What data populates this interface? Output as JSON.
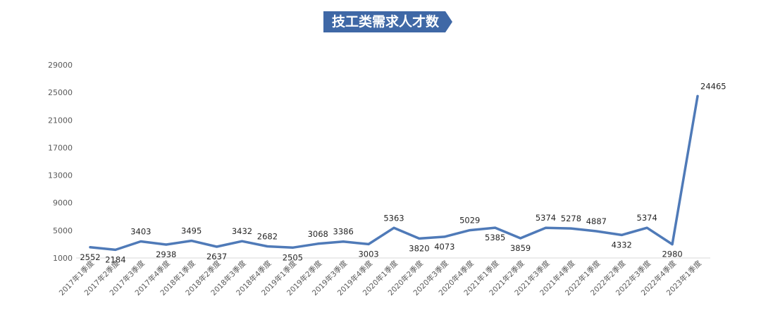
{
  "colors": {
    "title_bg": "#3f68a6",
    "title_text": "#ffffff",
    "line": "#4f7ab8",
    "axis_text": "#595959",
    "label_text": "#262626",
    "axis_line": "#d9d9d9"
  },
  "chart_data": {
    "type": "line",
    "title": "技工类需求人才数",
    "xlabel": "",
    "ylabel": "",
    "ylim": [
      1000,
      29000
    ],
    "yticks": [
      1000,
      5000,
      9000,
      13000,
      17000,
      21000,
      25000,
      29000
    ],
    "grid": false,
    "categories": [
      "2017年1季度",
      "2017年2季度",
      "2017年3季度",
      "2017年4季度",
      "2018年1季度",
      "2018年2季度",
      "2018年3季度",
      "2018年4季度",
      "2019年1季度",
      "2019年2季度",
      "2019年3季度",
      "2019年4季度",
      "2020年1季度",
      "2020年2季度",
      "2020年3季度",
      "2020年4季度",
      "2021年1季度",
      "2021年2季度",
      "2021年3季度",
      "2021年4季度",
      "2022年1季度",
      "2022年2季度",
      "2022年3季度",
      "2022年4季度",
      "2023年1季度"
    ],
    "series": [
      {
        "values": [
          2552,
          2184,
          3403,
          2938,
          3495,
          2637,
          3432,
          2682,
          2505,
          3068,
          3386,
          3003,
          5363,
          3820,
          4073,
          5029,
          5385,
          3859,
          5374,
          5278,
          4887,
          4332,
          5374,
          2980,
          24465
        ],
        "label_positions": [
          "below",
          "below",
          "above",
          "below",
          "above",
          "below",
          "above",
          "above",
          "below",
          "above",
          "above",
          "below",
          "above",
          "below",
          "below",
          "above",
          "below",
          "below",
          "above",
          "above",
          "above",
          "below",
          "above",
          "below",
          "right"
        ]
      }
    ]
  }
}
